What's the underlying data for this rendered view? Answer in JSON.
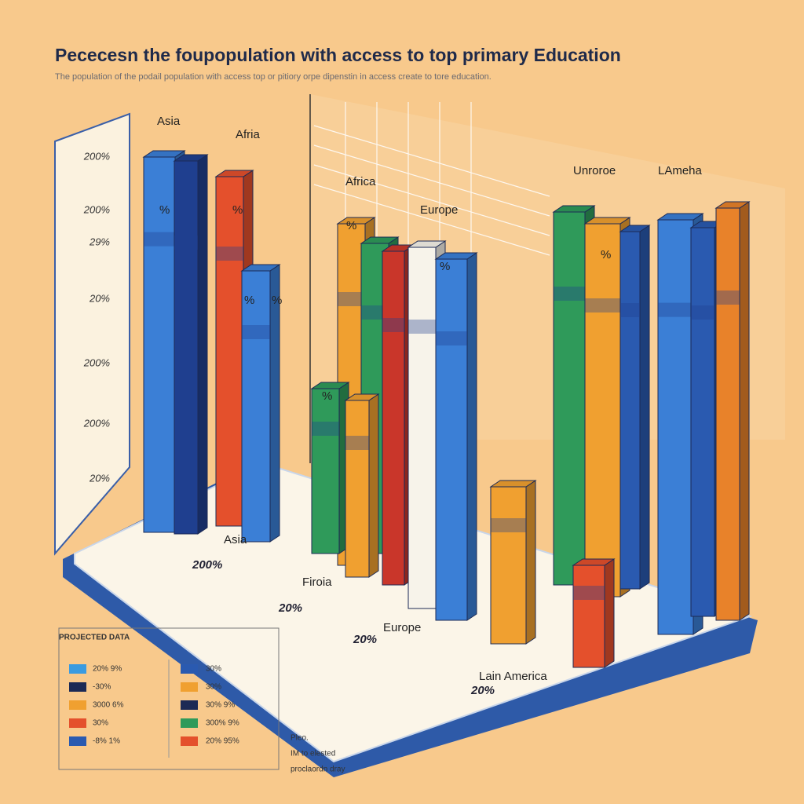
{
  "title": "Pececesn  the foupopulation with access to top primary Education",
  "subtitle": "The population of the podail population with access top or pitiory orpe dipenstin in access create to tore education.",
  "axis_labels": [
    "200%",
    "200%",
    "29%",
    "20%",
    "200%",
    "200%",
    "20%"
  ],
  "region_labels": [
    "Asia",
    "Afria",
    "Africa",
    "Europe",
    "Unroroe",
    "LAmeha"
  ],
  "bar_labels": [
    "%",
    "%",
    "%",
    "%",
    "%",
    "%",
    "%",
    "%"
  ],
  "base_labels": [
    {
      "name": "Asia",
      "value": "200%"
    },
    {
      "name": "Firoia",
      "value": "20%"
    },
    {
      "name": "Europe",
      "value": "20%"
    },
    {
      "name": "Lain America",
      "value": "20%"
    }
  ],
  "legend": {
    "title": "PROJECTED DATA",
    "col1": [
      "20% 9%",
      "-30%",
      "3000 6%",
      "30%",
      "-8% 1%"
    ],
    "col2": [
      "30%",
      "30%",
      "30% 9%",
      "300% 9%",
      "20% 95%"
    ]
  },
  "note": [
    "Pleo.",
    "IM to elested",
    "proclaordn dray"
  ]
}
